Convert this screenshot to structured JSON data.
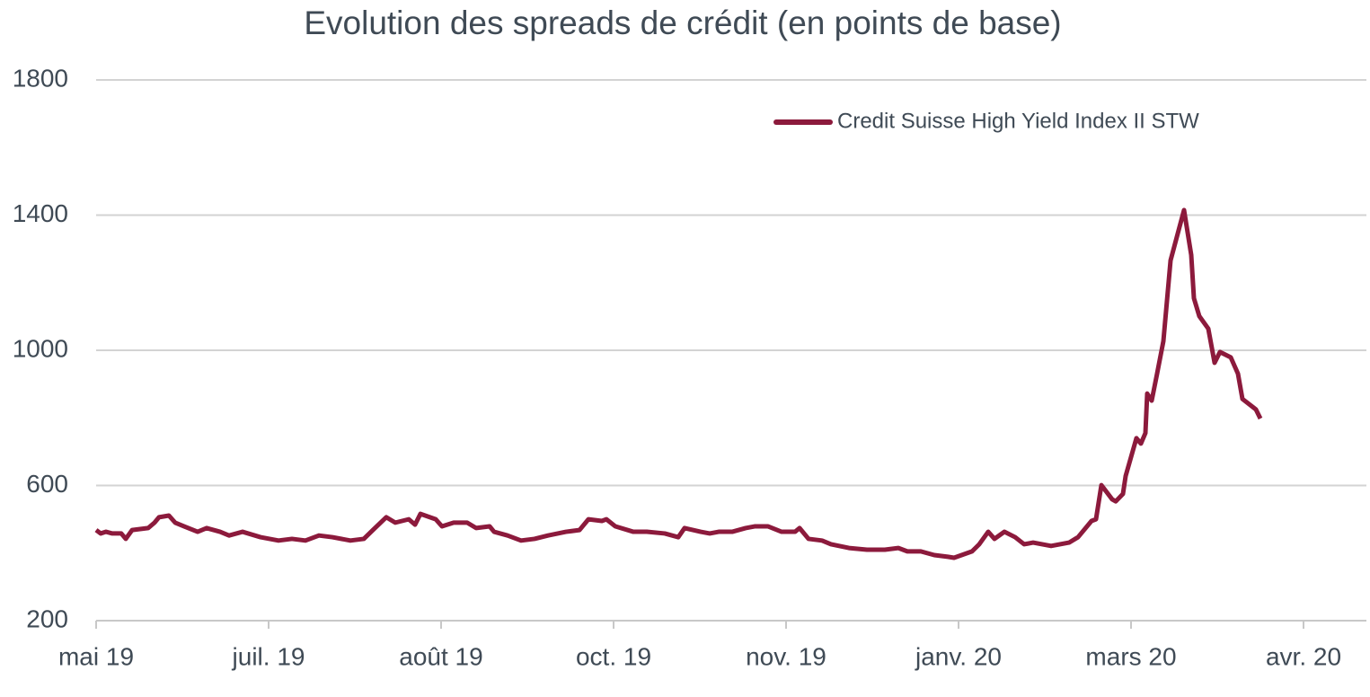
{
  "chart_data": {
    "type": "line",
    "title": "Evolution des spreads de crédit (en points de base)",
    "x": [
      0,
      5,
      11,
      18,
      28,
      33,
      40,
      58,
      65,
      70,
      81,
      88,
      98,
      113,
      123,
      138,
      148,
      163,
      183,
      203,
      218,
      233,
      248,
      263,
      283,
      298,
      308,
      323,
      333,
      348,
      355,
      361,
      378,
      385,
      398,
      413,
      423,
      438,
      443,
      458,
      473,
      488,
      503,
      523,
      538,
      548,
      563,
      568,
      578,
      598,
      613,
      633,
      648,
      655,
      673,
      683,
      693,
      708,
      723,
      733,
      748,
      763,
      778,
      783,
      793,
      808,
      818,
      838,
      858,
      878,
      893,
      903,
      918,
      933,
      948,
      955,
      975,
      983,
      993,
      1000,
      1011,
      1023,
      1033,
      1043,
      1053,
      1063,
      1083,
      1093,
      1108,
      1113,
      1119,
      1131,
      1135,
      1143,
      1146,
      1158,
      1163,
      1168,
      1170,
      1175,
      1181,
      1188,
      1196,
      1211,
      1219,
      1222,
      1228,
      1238,
      1245,
      1251,
      1263,
      1271,
      1276,
      1291,
      1296
    ],
    "series": [
      {
        "name": "Credit Suisse High Yield Index II STW",
        "color": "#8c1a3c",
        "values": [
          468,
          458,
          463,
          458,
          458,
          442,
          468,
          474,
          490,
          506,
          511,
          490,
          479,
          463,
          474,
          463,
          452,
          463,
          447,
          437,
          442,
          437,
          452,
          447,
          437,
          442,
          468,
          506,
          490,
          500,
          484,
          516,
          500,
          479,
          490,
          490,
          474,
          479,
          463,
          452,
          437,
          442,
          452,
          463,
          468,
          500,
          495,
          500,
          479,
          463,
          463,
          458,
          447,
          474,
          463,
          458,
          463,
          463,
          474,
          479,
          479,
          463,
          463,
          474,
          442,
          437,
          426,
          415,
          410,
          410,
          415,
          405,
          405,
          394,
          389,
          386,
          405,
          426,
          463,
          442,
          463,
          447,
          426,
          431,
          426,
          421,
          431,
          447,
          495,
          500,
          601,
          559,
          553,
          575,
          628,
          740,
          724,
          755,
          872,
          851,
          931,
          1027,
          1266,
          1415,
          1282,
          1154,
          1101,
          1064,
          963,
          995,
          979,
          931,
          856,
          825,
          798
        ]
      }
    ],
    "xlim": [
      0,
      1414
    ],
    "xticks": [
      {
        "value": 0,
        "label": "mai 19"
      },
      {
        "value": 192,
        "label": "juil. 19"
      },
      {
        "value": 384,
        "label": "août 19"
      },
      {
        "value": 576,
        "label": "oct. 19"
      },
      {
        "value": 768,
        "label": "nov. 19"
      },
      {
        "value": 960,
        "label": "janv. 20"
      },
      {
        "value": 1152,
        "label": "mars 20"
      },
      {
        "value": 1344,
        "label": "avr. 20"
      }
    ],
    "ylim": [
      200,
      1800
    ],
    "yticks": [
      200,
      600,
      1000,
      1400,
      1800
    ],
    "grid": true,
    "legend": "top-right"
  }
}
